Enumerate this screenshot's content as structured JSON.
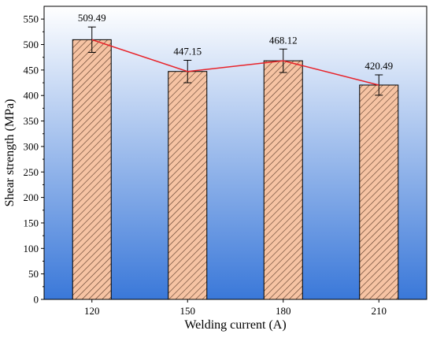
{
  "chart_data": {
    "type": "bar",
    "categories": [
      "120",
      "150",
      "180",
      "210"
    ],
    "values": [
      509.49,
      447.15,
      468.12,
      420.49
    ],
    "errors": [
      25,
      22,
      23,
      20
    ],
    "data_labels": [
      "509.49",
      "447.15",
      "468.12",
      "420.49"
    ],
    "xlabel": "Welding current (A)",
    "ylabel": "Shear strength (MPa)",
    "ylim": [
      0,
      575
    ],
    "yticks": [
      0,
      50,
      100,
      150,
      200,
      250,
      300,
      350,
      400,
      450,
      500,
      550
    ],
    "trend_line": true,
    "colors": {
      "bar_fill": "#f6c3a3",
      "bar_hatch": "#5a3a28",
      "trend_line": "#e8232a",
      "background_top": "#ffffff",
      "background_bottom": "#3a78d9"
    },
    "bar_pattern": "diagonal-hatch"
  }
}
